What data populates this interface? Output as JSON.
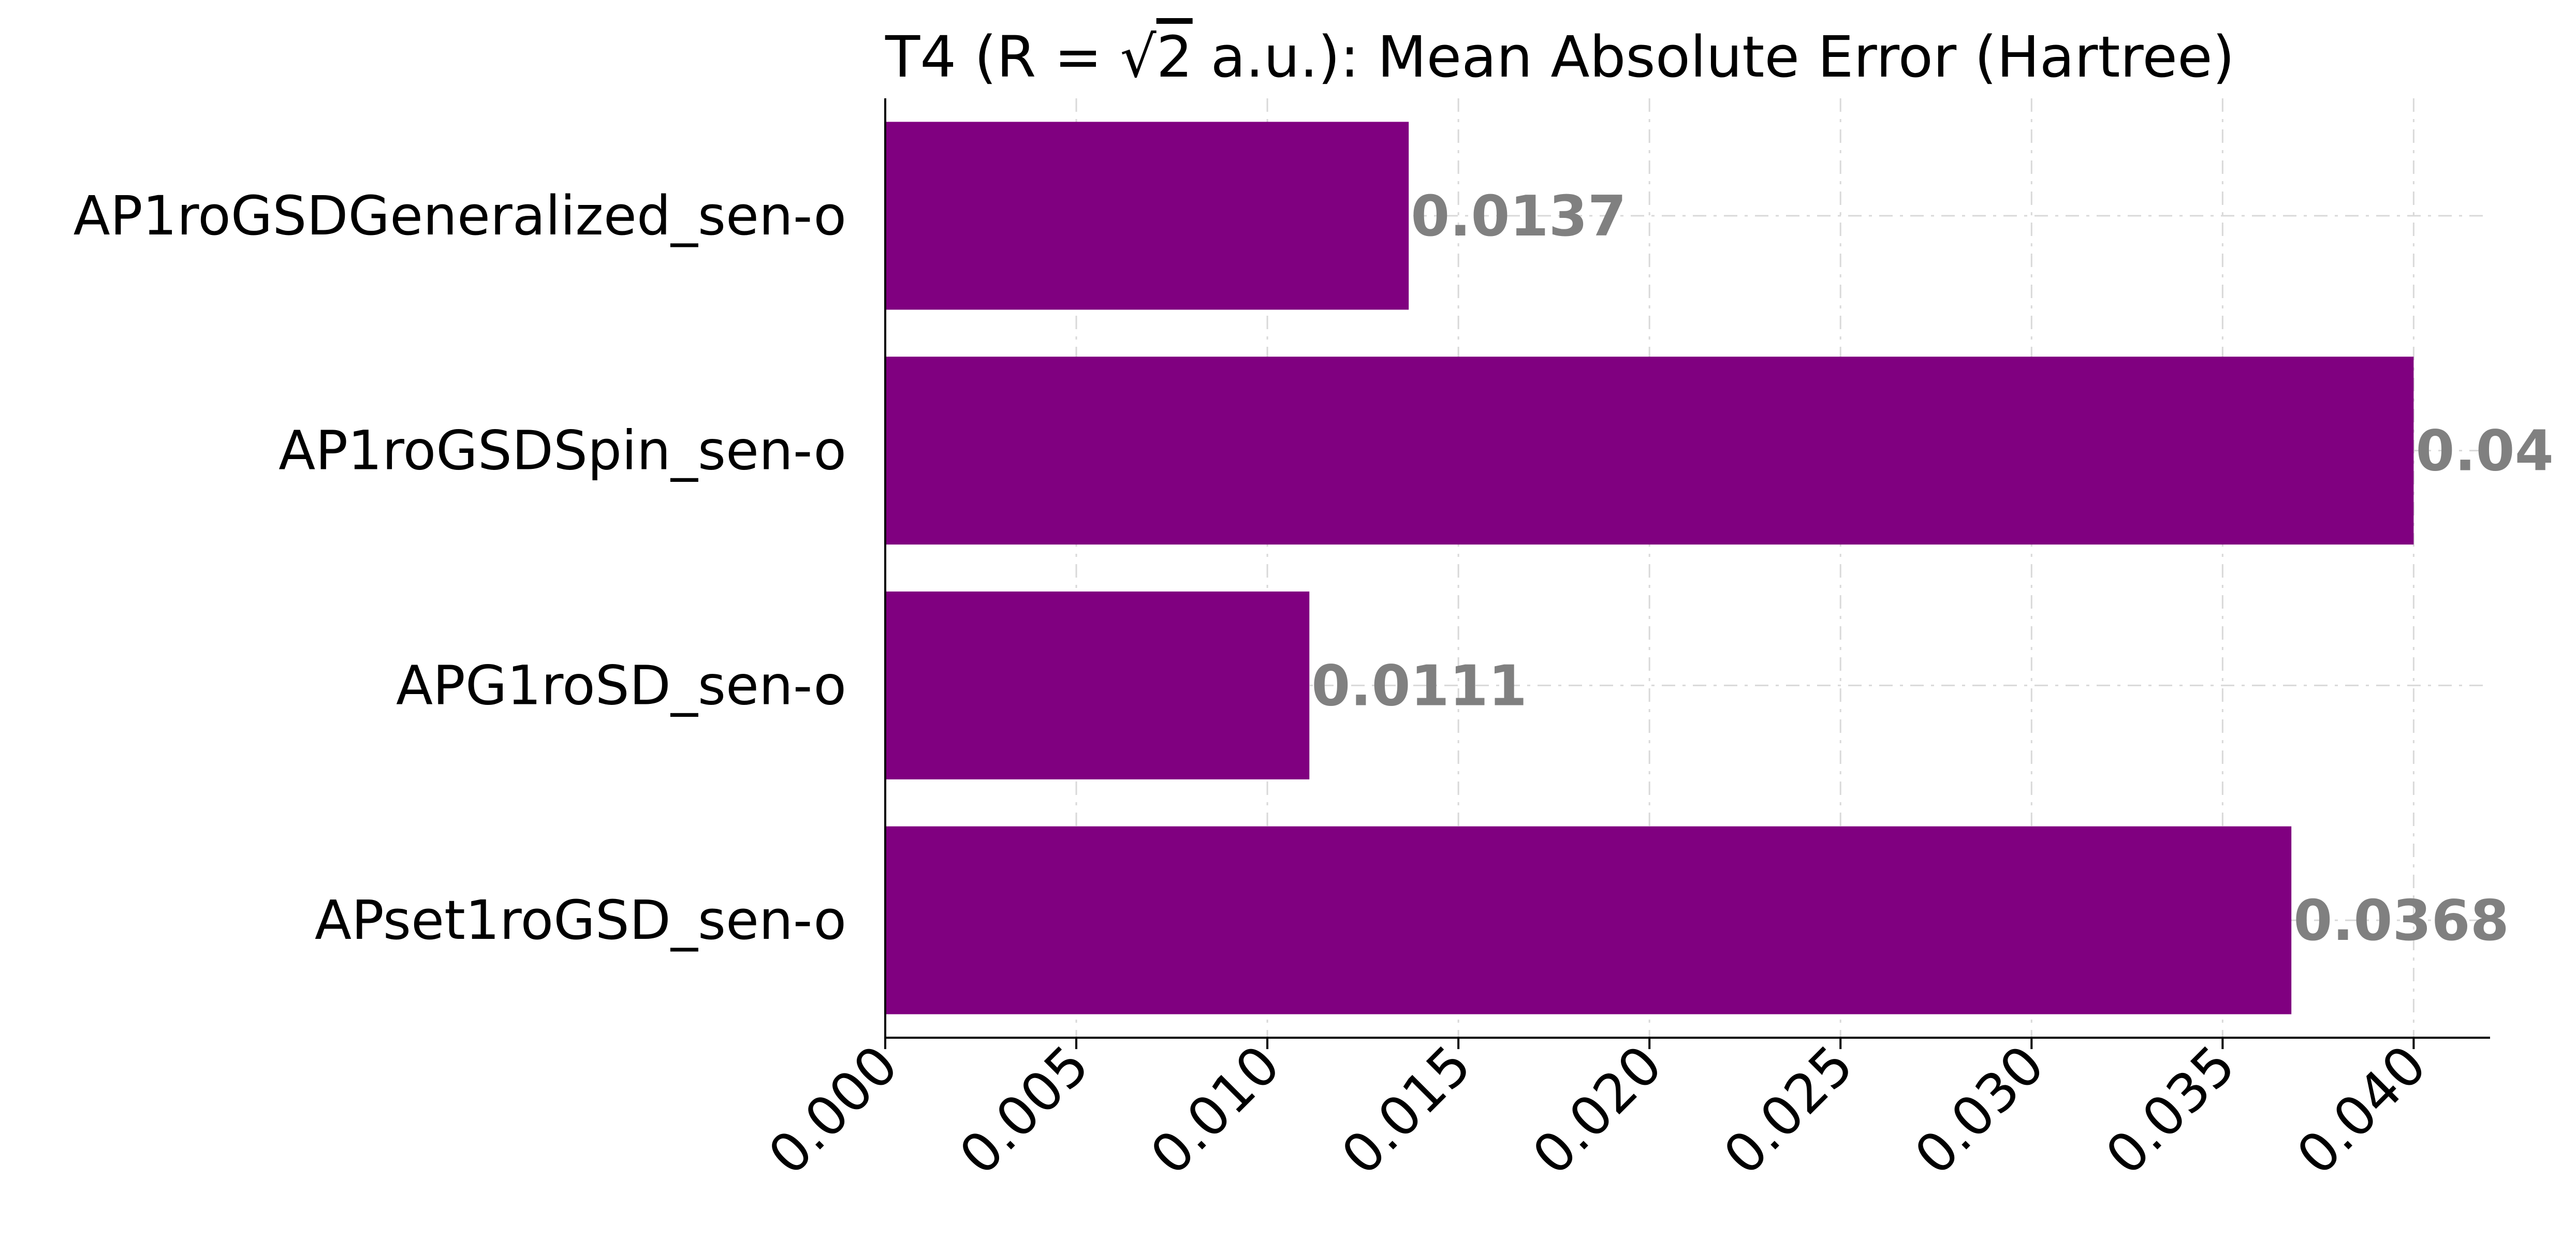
{
  "chart_data": {
    "type": "bar",
    "orientation": "horizontal",
    "title_parts": {
      "prefix": "T4 (R = ",
      "radical": "√",
      "radicand": "2",
      "suffix": " a.u.): Mean Absolute Error (Hartree)"
    },
    "categories": [
      "AP1roGSDGeneralized_sen-o",
      "AP1roGSDSpin_sen-o",
      "APG1roSD_sen-o",
      "APset1roGSD_sen-o"
    ],
    "values": [
      0.0137,
      0.04,
      0.0111,
      0.0368
    ],
    "value_labels": [
      "0.0137",
      "0.04",
      "0.0111",
      "0.0368"
    ],
    "xticks": [
      0.0,
      0.005,
      0.01,
      0.015,
      0.02,
      0.025,
      0.03,
      0.035,
      0.04
    ],
    "xtick_labels": [
      "0.000",
      "0.005",
      "0.010",
      "0.015",
      "0.020",
      "0.025",
      "0.030",
      "0.035",
      "0.040"
    ],
    "xlim": [
      0,
      0.042
    ],
    "xlabel": "",
    "ylabel": "",
    "grid": true,
    "legend": "none",
    "colors": {
      "bar": "#800080",
      "value_label": "#808080",
      "grid": "#d9d9d9",
      "axis": "#000000"
    }
  }
}
